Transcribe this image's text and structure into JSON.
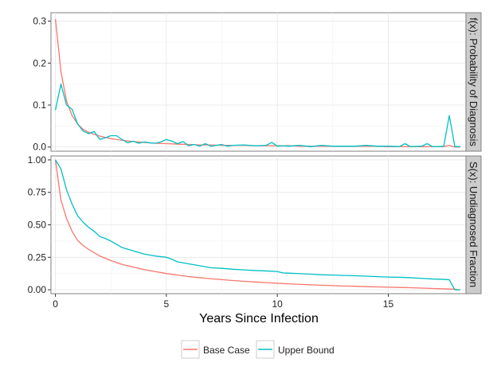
{
  "chart_data": {
    "type": "line",
    "xlabel": "Years Since Infection",
    "xlim": [
      -0.2,
      18.5
    ],
    "x_ticks": [
      0,
      5,
      10,
      15
    ],
    "legend_position": "bottom",
    "legend": [
      {
        "name": "Base Case",
        "color": "#F8766D"
      },
      {
        "name": "Upper Bound",
        "color": "#00BFC4"
      }
    ],
    "panels": [
      {
        "strip_label": "f(x): Probability of Diagnosis",
        "ylim": [
          -0.01,
          0.32
        ],
        "y_ticks": [
          0.0,
          0.1,
          0.2,
          0.3
        ],
        "y_tick_labels": [
          "0.0",
          "0.1",
          "0.2",
          "0.3"
        ],
        "series": [
          {
            "name": "Base Case",
            "color": "#F8766D",
            "x": [
              0.0,
              0.25,
              0.5,
              0.75,
              1.0,
              1.25,
              1.5,
              1.75,
              2.0,
              2.25,
              2.5,
              2.75,
              3.0,
              3.5,
              4.0,
              4.5,
              5.0,
              5.5,
              6.0,
              6.5,
              7.0,
              7.5,
              8.0,
              8.5,
              9.0,
              9.5,
              10.0,
              10.5,
              11.0,
              11.5,
              12.0,
              12.5,
              13.0,
              13.5,
              14.0,
              14.5,
              15.0,
              15.5,
              16.0,
              16.5,
              17.0,
              17.5,
              17.75,
              18.0,
              18.25
            ],
            "y": [
              0.305,
              0.18,
              0.11,
              0.075,
              0.055,
              0.042,
              0.035,
              0.03,
              0.026,
              0.023,
              0.02,
              0.018,
              0.016,
              0.013,
              0.011,
              0.009,
              0.008,
              0.007,
              0.006,
              0.005,
              0.005,
              0.004,
              0.004,
              0.004,
              0.003,
              0.003,
              0.003,
              0.003,
              0.002,
              0.002,
              0.002,
              0.002,
              0.002,
              0.002,
              0.002,
              0.002,
              0.001,
              0.001,
              0.001,
              0.001,
              0.001,
              0.001,
              0.004,
              0.0,
              0.0
            ]
          },
          {
            "name": "Upper Bound",
            "color": "#00BFC4",
            "x": [
              0.0,
              0.25,
              0.5,
              0.75,
              1.0,
              1.25,
              1.5,
              1.75,
              2.0,
              2.25,
              2.5,
              2.75,
              3.0,
              3.25,
              3.5,
              3.75,
              4.0,
              4.25,
              4.5,
              4.75,
              5.0,
              5.25,
              5.5,
              5.75,
              6.0,
              6.25,
              6.5,
              6.75,
              7.0,
              7.25,
              7.5,
              7.75,
              8.0,
              8.5,
              9.0,
              9.5,
              9.75,
              10.0,
              10.25,
              10.5,
              11.0,
              11.5,
              12.0,
              12.5,
              13.0,
              13.5,
              14.0,
              14.5,
              15.0,
              15.5,
              15.75,
              16.0,
              16.5,
              16.75,
              17.0,
              17.25,
              17.5,
              17.75,
              18.0,
              18.25
            ],
            "y": [
              0.088,
              0.15,
              0.1,
              0.09,
              0.055,
              0.038,
              0.032,
              0.037,
              0.018,
              0.022,
              0.027,
              0.027,
              0.018,
              0.01,
              0.014,
              0.009,
              0.012,
              0.01,
              0.009,
              0.012,
              0.018,
              0.014,
              0.008,
              0.013,
              0.003,
              0.006,
              0.002,
              0.008,
              0.002,
              0.004,
              0.006,
              0.002,
              0.004,
              0.005,
              0.003,
              0.004,
              0.011,
              0.002,
              0.003,
              0.002,
              0.004,
              0.001,
              0.004,
              0.002,
              0.002,
              0.002,
              0.004,
              0.002,
              0.002,
              0.001,
              0.008,
              0.001,
              0.002,
              0.008,
              0.001,
              0.001,
              0.002,
              0.075,
              0.001,
              0.001
            ]
          }
        ]
      },
      {
        "strip_label": "S(x): Undiagnosed Fraction",
        "ylim": [
          -0.03,
          1.03
        ],
        "y_ticks": [
          0.0,
          0.25,
          0.5,
          0.75,
          1.0
        ],
        "y_tick_labels": [
          "0.00",
          "0.25",
          "0.50",
          "0.75",
          "1.00"
        ],
        "series": [
          {
            "name": "Base Case",
            "color": "#F8766D",
            "x": [
              0.0,
              0.25,
              0.5,
              0.75,
              1.0,
              1.25,
              1.5,
              1.75,
              2.0,
              2.5,
              3.0,
              3.5,
              4.0,
              4.5,
              5.0,
              5.5,
              6.0,
              6.5,
              7.0,
              7.5,
              8.0,
              8.5,
              9.0,
              9.5,
              10.0,
              10.5,
              11.0,
              11.5,
              12.0,
              12.5,
              13.0,
              13.5,
              14.0,
              14.5,
              15.0,
              15.5,
              16.0,
              16.5,
              17.0,
              17.5,
              18.0,
              18.25
            ],
            "y": [
              1.0,
              0.69,
              0.55,
              0.45,
              0.38,
              0.34,
              0.31,
              0.285,
              0.26,
              0.225,
              0.195,
              0.175,
              0.155,
              0.14,
              0.125,
              0.113,
              0.102,
              0.093,
              0.085,
              0.078,
              0.071,
              0.065,
              0.06,
              0.055,
              0.05,
              0.046,
              0.042,
              0.038,
              0.035,
              0.032,
              0.029,
              0.027,
              0.024,
              0.022,
              0.02,
              0.018,
              0.016,
              0.013,
              0.01,
              0.007,
              0.004,
              0.0
            ]
          },
          {
            "name": "Upper Bound",
            "color": "#00BFC4",
            "x": [
              0.0,
              0.25,
              0.5,
              0.75,
              1.0,
              1.25,
              1.5,
              1.75,
              2.0,
              2.25,
              2.5,
              2.75,
              3.0,
              3.5,
              4.0,
              4.5,
              5.0,
              5.25,
              5.5,
              6.0,
              6.5,
              7.0,
              7.5,
              8.0,
              8.5,
              9.0,
              9.5,
              10.0,
              10.25,
              10.5,
              11.0,
              11.5,
              12.0,
              12.5,
              13.0,
              13.5,
              14.0,
              14.5,
              15.0,
              15.5,
              16.0,
              16.5,
              17.0,
              17.5,
              17.75,
              18.0,
              18.25
            ],
            "y": [
              1.0,
              0.93,
              0.77,
              0.66,
              0.57,
              0.52,
              0.48,
              0.45,
              0.41,
              0.395,
              0.375,
              0.35,
              0.325,
              0.3,
              0.275,
              0.26,
              0.25,
              0.235,
              0.215,
              0.2,
              0.185,
              0.17,
              0.165,
              0.158,
              0.153,
              0.148,
              0.145,
              0.14,
              0.13,
              0.128,
              0.124,
              0.12,
              0.115,
              0.113,
              0.11,
              0.108,
              0.105,
              0.101,
              0.098,
              0.096,
              0.093,
              0.088,
              0.083,
              0.08,
              0.077,
              0.0,
              0.0
            ]
          }
        ]
      }
    ]
  }
}
